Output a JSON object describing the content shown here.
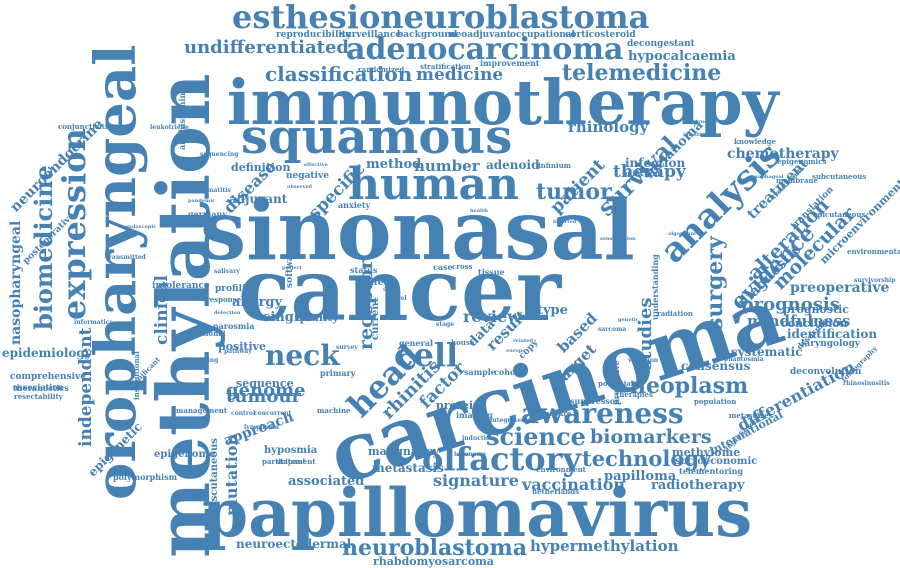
{
  "theme": {
    "word_color": "#4681b4",
    "background": "#ffffff"
  },
  "words": {
    "esthesioneuroblastoma": "esthesioneuroblastoma",
    "adenocarcinoma": "adenocarcinoma",
    "undifferentiated": "undifferentiated",
    "classification": "classification",
    "medicine": "medicine",
    "telemedicine": "telemedicine",
    "immunotherapy": "immunotherapy",
    "squamous": "squamous",
    "human": "human",
    "tumor": "tumor",
    "rhinology": "rhinology",
    "survival": "survival",
    "analysis": "analysis",
    "chemotherapy": "chemotherapy",
    "methylation": "methylation",
    "oropharyngeal": "oropharyngeal",
    "expression": "expression",
    "biomedicine": "biomedicine",
    "neuroendocrine": "neuroendocrine",
    "sinonasal": "sinonasal",
    "cancer": "cancer",
    "carcinoma": "carcinoma",
    "papillomavirus": "papillomavirus",
    "neuroblastoma": "neuroblastoma",
    "hypermethylation": "hypermethylation",
    "rhabdomyosarcoma": "rhabdomyosarcoma",
    "neuroectodermal": "neuroectodermal",
    "head": "head",
    "neck": "neck",
    "cell": "cell",
    "awareness": "awareness",
    "science": "science",
    "biomarkers": "biomarkers",
    "olfactory": "olfactory",
    "technology": "technology",
    "signature": "signature",
    "vaccination": "vaccination",
    "papilloma": "papilloma",
    "radiotherapy": "radiotherapy",
    "metastasis": "metastasis",
    "malignancy": "malignancy",
    "associated": "associated",
    "neoplasm": "neoplasm",
    "prognosis": "prognosis",
    "mindfulness": "mindfulness",
    "preoperative": "preoperative",
    "diagnostic": "diagnostic",
    "molecular": "molecular",
    "treatment": "treatment",
    "surgery": "surgery",
    "evidence": "evidence",
    "alteration": "alteration",
    "therapy": "therapy",
    "patient": "patient",
    "studies": "studies",
    "differentiation": "differentiation",
    "international": "international",
    "methylome": "methylome",
    "socioeconomic": "socioeconomic",
    "telementoring": "telementoring",
    "identification": "identification",
    "conclusion": "conclusion",
    "prognostic": "prognostic",
    "systematic": "systematic",
    "consensus": "consensus",
    "microenvironment": "microenvironment",
    "tumour": "tumour",
    "genome": "genome",
    "approach": "approach",
    "disease": "disease",
    "specific": "specific",
    "review": "review",
    "receptor": "receptor",
    "rhinitis": "rhinitis",
    "factor": "factor",
    "data": "data",
    "result": "result",
    "clinical": "clinical",
    "independent": "independent",
    "epidemiology": "epidemiology",
    "nasopharyngeal": "nasopharyngeal",
    "epigenetic": "epigenetic",
    "epigenome": "epigenome",
    "hyposmia": "hyposmia",
    "mutation": "mutation",
    "allergy": "allergy",
    "single": "single",
    "quality": "quality",
    "positive": "positive",
    "number": "number",
    "method": "method",
    "adenoid": "adenoid",
    "definition": "definition",
    "adjuvant": "adjuvant",
    "infection": "infection",
    "melanoma": "melanoma",
    "copy": "copy",
    "type": "type",
    "based": "based",
    "target": "target",
    "protein": "protein",
    "sequence": "sequence",
    "comprehensive": "comprehensive",
    "theranostics": "theranostics",
    "polymorphism": "polymorphism",
    "conjunctivitis": "conjunctivitis",
    "postoperative": "postoperative",
    "intolerance": "intolerance",
    "profiling": "profiling",
    "parosmia": "parosmia",
    "hypocalcaemia": "hypocalcaemia",
    "decongestant": "decongestant",
    "occupational": "occupational",
    "corticosteroid": "corticosteroid",
    "reproducibility": "reproducibility",
    "surveillance": "surveillance",
    "background": "background",
    "neoadjuvant": "neoadjuvant",
    "knowledge": "knowledge",
    "epigenomics": "epigenomics",
    "subcutaneous": "subcutaneous",
    "epicutaneous": "epicutaneous",
    "environmental": "environmental",
    "survivorship": "survivorship",
    "laryngology": "laryngology",
    "deconvolution": "deconvolution",
    "tomography": "tomography",
    "rhinosinusitis": "rhinosinusitis",
    "metastases": "metastases",
    "angiofibroma": "angiofibroma",
    "transcutaneous": "transcutaneous",
    "participant": "participant",
    "management": "management",
    "significant": "significant",
    "association": "association",
    "resectability": "resectability",
    "imaging": "imaging",
    "cohort": "cohort",
    "machine": "machine",
    "suppressor": "suppressor",
    "population": "population",
    "exposure": "exposure",
    "general": "general",
    "house": "house",
    "primary": "primary",
    "negative": "negative",
    "anxiety": "anxiety",
    "germany": "germany",
    "software": "software",
    "status": "status",
    "tissue": "tissue",
    "sample": "sample",
    "current": "current",
    "membrane": "membrane",
    "treatments": "treatments",
    "translation": "translation",
    "dysosmia": "dysosmia",
    "statement": "statement",
    "environment": "environment",
    "netherlands": "netherlands",
    "taxonomy": "taxonomy",
    "radiation": "radiation",
    "therapies": "therapies",
    "predictive": "predictive",
    "potential": "potential",
    "olfaction": "olfaction",
    "infinium": "infinium",
    "improvement": "improvement",
    "stratification": "stratification",
    "randomized": "randomized",
    "antihistamine": "antihistamine",
    "leukotriene": "leukotriene",
    "sequencing": "sequencing",
    "dermatitis": "dermatitis",
    "transmitted": "transmitted",
    "informatics": "informatics",
    "glottis": "glottis",
    "phantosmia": "phantosmia",
    "variation": "variation",
    "sarcoma": "sarcoma",
    "obstructive": "obstructive",
    "intestinal": "intestinal",
    "esophageal": "esophageal",
    "endoscopic": "endoscopic",
    "response": "response",
    "improving": "improving",
    "pathway": "pathway",
    "lymphoma": "lymphoma",
    "detection": "detection",
    "outcome": "outcome",
    "included": "included",
    "control": "control",
    "concurrent": "concurrent",
    "integrated": "integrated",
    "induction": "induction",
    "taste": "taste",
    "smell": "smell",
    "loss": "loss",
    "care": "care",
    "stage": "stage",
    "life": "life",
    "level": "level",
    "case": "case",
    "cross": "cross",
    "risk": "risk",
    "trial": "trial",
    "health": "health",
    "model": "model",
    "genetic": "genetic",
    "sectional": "sectional",
    "salivary": "salivary",
    "project": "project",
    "survey": "survey",
    "related": "related",
    "europe": "europe",
    "effective": "effective",
    "observed": "observed",
    "algorithm": "algorithm",
    "understanding": "understanding",
    "sensitization": "sensitization",
    "inverted": "inverted",
    "interval": "interval",
    "pandemic": "pandemic",
    "influence": "influence",
    "institutional": "institutional",
    "oncology": "oncology",
    "cytology": "cytology",
    "oncogenic": "oncogenic"
  }
}
